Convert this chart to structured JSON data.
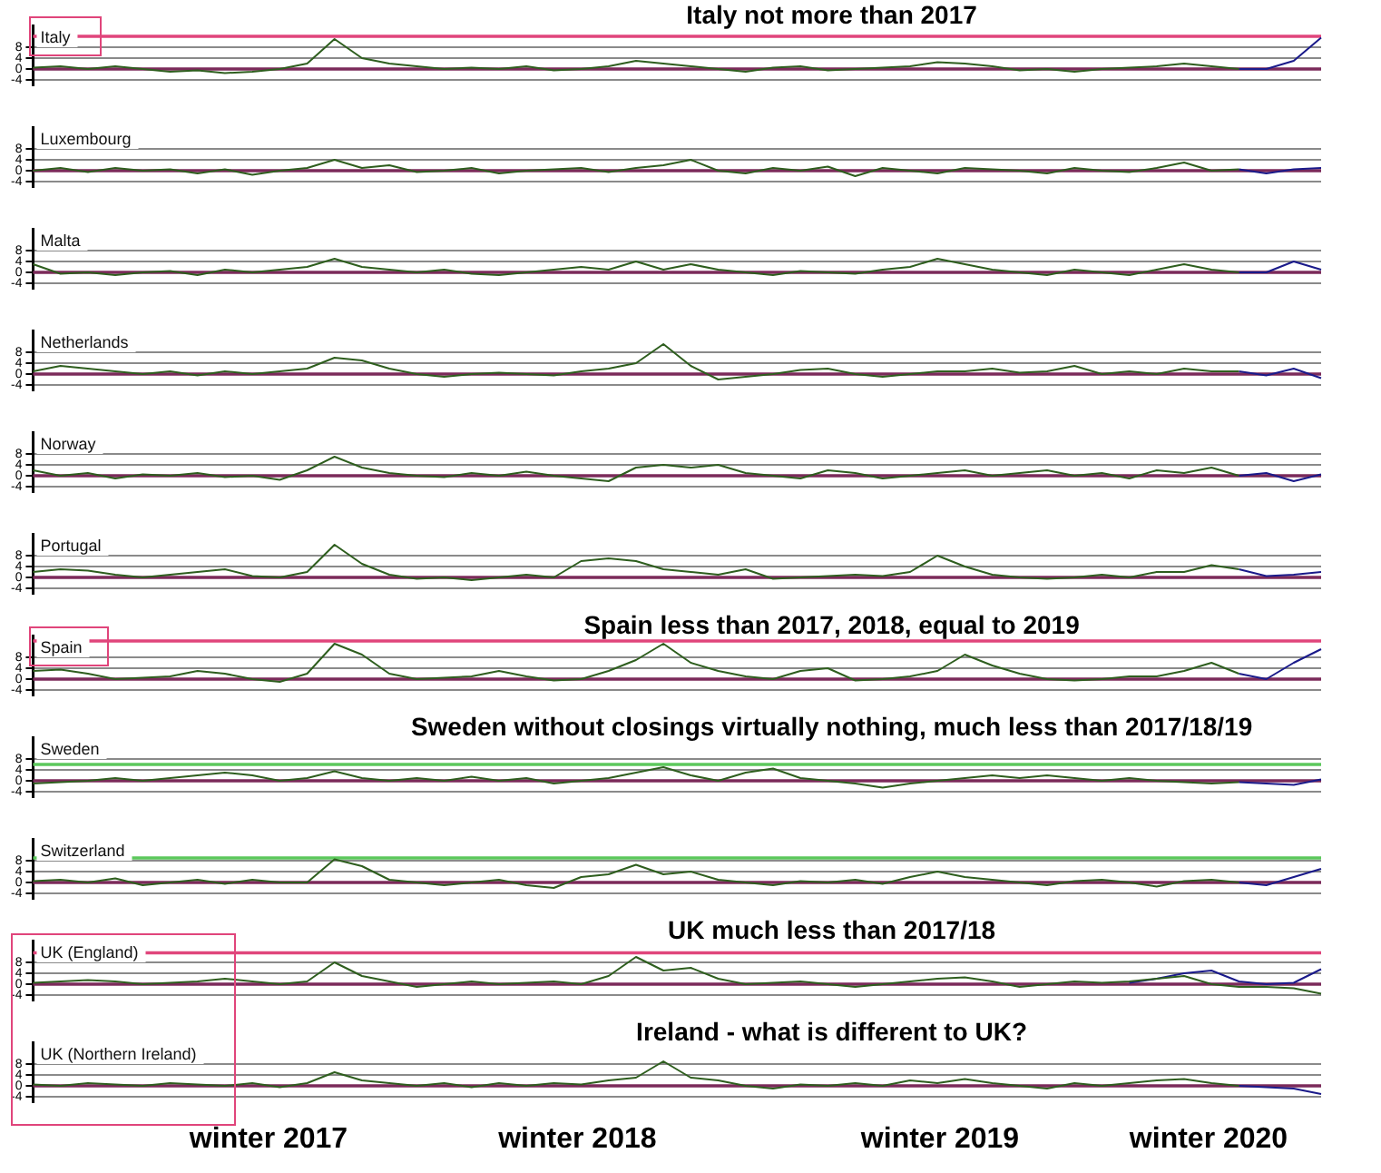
{
  "chart_data": [
    {
      "type": "line",
      "title": "Italy",
      "annotations": [
        "Italy not more than 2017"
      ],
      "categories": [
        null,
        null,
        null,
        null,
        null,
        null,
        null,
        null,
        null,
        null,
        null,
        null,
        null,
        null,
        null,
        null,
        null,
        null,
        null,
        null,
        null,
        null,
        null,
        null,
        null,
        null,
        null,
        null,
        null,
        null,
        null,
        null,
        null,
        null,
        null,
        null,
        null,
        null,
        null,
        null,
        null,
        null,
        null,
        null,
        null,
        null,
        null,
        null
      ],
      "series": [
        {
          "color": "#2e5e1e",
          "values": [
            0.5,
            1,
            0,
            1,
            0,
            -1,
            -0.5,
            -1.5,
            -1,
            0,
            2,
            11,
            4,
            2,
            1,
            0,
            0.5,
            0,
            1,
            -0.5,
            0,
            1,
            3,
            2,
            1,
            0,
            -1,
            0.5,
            1,
            -0.5,
            0,
            0.5,
            1,
            2.5,
            2,
            1,
            -0.5,
            0,
            -1,
            0,
            0.5,
            1,
            2,
            1,
            0,
            null,
            null,
            null
          ]
        },
        {
          "color": "#1a1a8a",
          "values": [
            null,
            null,
            null,
            null,
            null,
            null,
            null,
            null,
            null,
            null,
            null,
            null,
            null,
            null,
            null,
            null,
            null,
            null,
            null,
            null,
            null,
            null,
            null,
            null,
            null,
            null,
            null,
            null,
            null,
            null,
            null,
            null,
            null,
            null,
            null,
            null,
            null,
            null,
            null,
            null,
            null,
            null,
            null,
            null,
            0,
            0,
            3,
            11.5
          ]
        }
      ],
      "ylim": [
        -6,
        16
      ],
      "yticks": [
        -4,
        0,
        4,
        8
      ],
      "grid": "y",
      "tick_labels": "y",
      "ref_lines": [
        {
          "axis": "y",
          "value": 0,
          "color": "#7b2a5a"
        },
        {
          "axis": "y",
          "value": 12,
          "color": "#e0457b"
        }
      ]
    },
    {
      "type": "line",
      "title": "Luxembourg",
      "categories": [
        null,
        null,
        null,
        null,
        null,
        null,
        null,
        null,
        null,
        null,
        null,
        null,
        null,
        null,
        null,
        null,
        null,
        null,
        null,
        null,
        null,
        null,
        null,
        null,
        null,
        null,
        null,
        null,
        null,
        null,
        null,
        null,
        null,
        null,
        null,
        null,
        null,
        null,
        null,
        null,
        null,
        null,
        null,
        null,
        null,
        null,
        null,
        null
      ],
      "series": [
        {
          "color": "#2e5e1e",
          "values": [
            0,
            1,
            -0.5,
            1,
            0,
            0.5,
            -1,
            0.5,
            -1.5,
            0,
            1,
            4,
            1,
            2,
            -0.5,
            0,
            1,
            -1,
            0,
            0.5,
            1,
            -0.5,
            1,
            2,
            4,
            0,
            -1,
            1,
            0,
            1.5,
            -2,
            1,
            0,
            -1,
            1,
            0.5,
            0,
            -1,
            1,
            0,
            -0.5,
            1,
            3,
            0,
            0.5,
            null,
            null,
            null
          ]
        },
        {
          "color": "#1a1a8a",
          "values": [
            null,
            null,
            null,
            null,
            null,
            null,
            null,
            null,
            null,
            null,
            null,
            null,
            null,
            null,
            null,
            null,
            null,
            null,
            null,
            null,
            null,
            null,
            null,
            null,
            null,
            null,
            null,
            null,
            null,
            null,
            null,
            null,
            null,
            null,
            null,
            null,
            null,
            null,
            null,
            null,
            null,
            null,
            null,
            null,
            0.5,
            -1,
            0.5,
            1
          ]
        }
      ],
      "ylim": [
        -6,
        16
      ],
      "yticks": [
        -4,
        0,
        4,
        8
      ],
      "grid": "y",
      "tick_labels": "y",
      "ref_lines": [
        {
          "axis": "y",
          "value": 0,
          "color": "#7b2a5a"
        }
      ]
    },
    {
      "type": "line",
      "title": "Malta",
      "categories": [
        null,
        null,
        null,
        null,
        null,
        null,
        null,
        null,
        null,
        null,
        null,
        null,
        null,
        null,
        null,
        null,
        null,
        null,
        null,
        null,
        null,
        null,
        null,
        null,
        null,
        null,
        null,
        null,
        null,
        null,
        null,
        null,
        null,
        null,
        null,
        null,
        null,
        null,
        null,
        null,
        null,
        null,
        null,
        null,
        null,
        null,
        null,
        null
      ],
      "series": [
        {
          "color": "#2e5e1e",
          "values": [
            3,
            -0.5,
            0,
            -1,
            0,
            0.5,
            -1,
            1,
            0,
            1,
            2,
            5,
            2,
            1,
            0,
            1,
            -0.5,
            -1,
            0,
            1,
            2,
            1,
            4,
            1,
            3,
            1,
            0,
            -1,
            0.5,
            0,
            -0.5,
            1,
            2,
            5,
            3,
            1,
            0,
            -1,
            1,
            0,
            -1,
            1,
            3,
            1,
            0,
            null,
            null,
            null
          ]
        },
        {
          "color": "#1a1a8a",
          "values": [
            null,
            null,
            null,
            null,
            null,
            null,
            null,
            null,
            null,
            null,
            null,
            null,
            null,
            null,
            null,
            null,
            null,
            null,
            null,
            null,
            null,
            null,
            null,
            null,
            null,
            null,
            null,
            null,
            null,
            null,
            null,
            null,
            null,
            null,
            null,
            null,
            null,
            null,
            null,
            null,
            null,
            null,
            null,
            null,
            0,
            0,
            4,
            1
          ]
        }
      ],
      "ylim": [
        -6,
        16
      ],
      "yticks": [
        -4,
        0,
        4,
        8
      ],
      "grid": "y",
      "tick_labels": "y",
      "ref_lines": [
        {
          "axis": "y",
          "value": 0,
          "color": "#7b2a5a"
        }
      ]
    },
    {
      "type": "line",
      "title": "Netherlands",
      "categories": [
        null,
        null,
        null,
        null,
        null,
        null,
        null,
        null,
        null,
        null,
        null,
        null,
        null,
        null,
        null,
        null,
        null,
        null,
        null,
        null,
        null,
        null,
        null,
        null,
        null,
        null,
        null,
        null,
        null,
        null,
        null,
        null,
        null,
        null,
        null,
        null,
        null,
        null,
        null,
        null,
        null,
        null,
        null,
        null,
        null,
        null,
        null,
        null
      ],
      "series": [
        {
          "color": "#2e5e1e",
          "values": [
            1,
            3,
            2,
            1,
            0,
            1,
            -0.5,
            1,
            0,
            1,
            2,
            6,
            5,
            2,
            0,
            -1,
            0,
            0.5,
            0,
            -0.5,
            1,
            2,
            4,
            11,
            3,
            -2,
            -1,
            0,
            1.5,
            2,
            0,
            -1,
            0,
            1,
            1,
            2,
            0.5,
            1,
            3,
            0,
            1,
            0,
            2,
            1,
            1,
            null,
            null,
            null
          ]
        },
        {
          "color": "#1a1a8a",
          "values": [
            null,
            null,
            null,
            null,
            null,
            null,
            null,
            null,
            null,
            null,
            null,
            null,
            null,
            null,
            null,
            null,
            null,
            null,
            null,
            null,
            null,
            null,
            null,
            null,
            null,
            null,
            null,
            null,
            null,
            null,
            null,
            null,
            null,
            null,
            null,
            null,
            null,
            null,
            null,
            null,
            null,
            null,
            null,
            null,
            1,
            -0.5,
            2,
            -1.5
          ]
        }
      ],
      "ylim": [
        -6,
        16
      ],
      "yticks": [
        -4,
        0,
        4,
        8
      ],
      "grid": "y",
      "tick_labels": "y",
      "ref_lines": [
        {
          "axis": "y",
          "value": 0,
          "color": "#7b2a5a"
        }
      ]
    },
    {
      "type": "line",
      "title": "Norway",
      "categories": [
        null,
        null,
        null,
        null,
        null,
        null,
        null,
        null,
        null,
        null,
        null,
        null,
        null,
        null,
        null,
        null,
        null,
        null,
        null,
        null,
        null,
        null,
        null,
        null,
        null,
        null,
        null,
        null,
        null,
        null,
        null,
        null,
        null,
        null,
        null,
        null,
        null,
        null,
        null,
        null,
        null,
        null,
        null,
        null,
        null,
        null,
        null,
        null
      ],
      "series": [
        {
          "color": "#2e5e1e",
          "values": [
            2,
            0,
            1,
            -1,
            0.5,
            0,
            1,
            -0.5,
            0,
            -1.5,
            2,
            7,
            3,
            1,
            0,
            -0.5,
            1,
            0,
            1.5,
            0,
            -1,
            -2,
            3,
            4,
            3,
            4,
            1,
            0,
            -1,
            2,
            1,
            -1,
            0,
            1,
            2,
            0,
            1,
            2,
            0,
            1,
            -1,
            2,
            1,
            3,
            0,
            null,
            null,
            null
          ]
        },
        {
          "color": "#1a1a8a",
          "values": [
            null,
            null,
            null,
            null,
            null,
            null,
            null,
            null,
            null,
            null,
            null,
            null,
            null,
            null,
            null,
            null,
            null,
            null,
            null,
            null,
            null,
            null,
            null,
            null,
            null,
            null,
            null,
            null,
            null,
            null,
            null,
            null,
            null,
            null,
            null,
            null,
            null,
            null,
            null,
            null,
            null,
            null,
            null,
            null,
            0,
            1,
            -2,
            0.5
          ]
        }
      ],
      "ylim": [
        -6,
        16
      ],
      "yticks": [
        -4,
        0,
        4,
        8
      ],
      "grid": "y",
      "tick_labels": "y",
      "ref_lines": [
        {
          "axis": "y",
          "value": 0,
          "color": "#7b2a5a"
        }
      ]
    },
    {
      "type": "line",
      "title": "Portugal",
      "categories": [
        null,
        null,
        null,
        null,
        null,
        null,
        null,
        null,
        null,
        null,
        null,
        null,
        null,
        null,
        null,
        null,
        null,
        null,
        null,
        null,
        null,
        null,
        null,
        null,
        null,
        null,
        null,
        null,
        null,
        null,
        null,
        null,
        null,
        null,
        null,
        null,
        null,
        null,
        null,
        null,
        null,
        null,
        null,
        null,
        null,
        null,
        null,
        null
      ],
      "series": [
        {
          "color": "#2e5e1e",
          "values": [
            2,
            3,
            2.5,
            1,
            0,
            1,
            2,
            3,
            0.5,
            0,
            2,
            12,
            5,
            1,
            -0.5,
            0,
            -1,
            0,
            1,
            0,
            6,
            7,
            6,
            3,
            2,
            1,
            3,
            -0.5,
            0,
            0.5,
            1,
            0.5,
            2,
            8,
            4,
            1,
            0,
            -0.5,
            0,
            1,
            0,
            2,
            2,
            4.5,
            3,
            null,
            null,
            null
          ]
        },
        {
          "color": "#1a1a8a",
          "values": [
            null,
            null,
            null,
            null,
            null,
            null,
            null,
            null,
            null,
            null,
            null,
            null,
            null,
            null,
            null,
            null,
            null,
            null,
            null,
            null,
            null,
            null,
            null,
            null,
            null,
            null,
            null,
            null,
            null,
            null,
            null,
            null,
            null,
            null,
            null,
            null,
            null,
            null,
            null,
            null,
            null,
            null,
            null,
            null,
            3,
            0.5,
            1,
            2
          ]
        }
      ],
      "ylim": [
        -6,
        16
      ],
      "yticks": [
        -4,
        0,
        4,
        8
      ],
      "grid": "y",
      "tick_labels": "y",
      "ref_lines": [
        {
          "axis": "y",
          "value": 0,
          "color": "#7b2a5a"
        }
      ]
    },
    {
      "type": "line",
      "title": "Spain",
      "annotations": [
        "Spain less than 2017, 2018, equal to 2019"
      ],
      "categories": [
        null,
        null,
        null,
        null,
        null,
        null,
        null,
        null,
        null,
        null,
        null,
        null,
        null,
        null,
        null,
        null,
        null,
        null,
        null,
        null,
        null,
        null,
        null,
        null,
        null,
        null,
        null,
        null,
        null,
        null,
        null,
        null,
        null,
        null,
        null,
        null,
        null,
        null,
        null,
        null,
        null,
        null,
        null,
        null,
        null,
        null,
        null,
        null
      ],
      "series": [
        {
          "color": "#2e5e1e",
          "values": [
            3,
            3.5,
            2,
            0,
            0.5,
            1,
            3,
            2,
            0,
            -1,
            2,
            13,
            9,
            2,
            0,
            0.5,
            1,
            3,
            1,
            -0.5,
            0,
            3,
            7,
            13,
            6,
            3,
            1,
            0,
            3,
            4,
            -0.5,
            0,
            1,
            3,
            9,
            5,
            2,
            0,
            -0.5,
            0,
            1,
            1,
            3,
            6,
            2,
            null,
            null,
            null
          ]
        },
        {
          "color": "#1a1a8a",
          "values": [
            null,
            null,
            null,
            null,
            null,
            null,
            null,
            null,
            null,
            null,
            null,
            null,
            null,
            null,
            null,
            null,
            null,
            null,
            null,
            null,
            null,
            null,
            null,
            null,
            null,
            null,
            null,
            null,
            null,
            null,
            null,
            null,
            null,
            null,
            null,
            null,
            null,
            null,
            null,
            null,
            null,
            null,
            null,
            null,
            2,
            0,
            6,
            11
          ]
        }
      ],
      "ylim": [
        -6,
        16
      ],
      "yticks": [
        -4,
        0,
        4,
        8
      ],
      "grid": "y",
      "tick_labels": "y",
      "ref_lines": [
        {
          "axis": "y",
          "value": 0,
          "color": "#7b2a5a"
        },
        {
          "axis": "y",
          "value": 14,
          "color": "#e0457b"
        }
      ]
    },
    {
      "type": "line",
      "title": "Sweden",
      "annotations": [
        "Sweden without closings virtually nothing, much less than 2017/18/19"
      ],
      "categories": [
        null,
        null,
        null,
        null,
        null,
        null,
        null,
        null,
        null,
        null,
        null,
        null,
        null,
        null,
        null,
        null,
        null,
        null,
        null,
        null,
        null,
        null,
        null,
        null,
        null,
        null,
        null,
        null,
        null,
        null,
        null,
        null,
        null,
        null,
        null,
        null,
        null,
        null,
        null,
        null,
        null,
        null,
        null,
        null,
        null,
        null,
        null,
        null
      ],
      "series": [
        {
          "color": "#2e5e1e",
          "values": [
            -1,
            -0.5,
            0,
            1,
            0,
            1,
            2,
            3,
            2,
            0,
            1,
            3.5,
            1,
            0,
            1,
            0,
            1.5,
            0,
            1,
            -1,
            0,
            1,
            3,
            5,
            2,
            0,
            3,
            4.5,
            1,
            0,
            -1,
            -2.5,
            -1,
            0,
            1,
            2,
            1,
            2,
            1,
            0,
            1,
            0,
            -0.5,
            -1,
            -0.5,
            null,
            null,
            null
          ]
        },
        {
          "color": "#1a1a8a",
          "values": [
            null,
            null,
            null,
            null,
            null,
            null,
            null,
            null,
            null,
            null,
            null,
            null,
            null,
            null,
            null,
            null,
            null,
            null,
            null,
            null,
            null,
            null,
            null,
            null,
            null,
            null,
            null,
            null,
            null,
            null,
            null,
            null,
            null,
            null,
            null,
            null,
            null,
            null,
            null,
            null,
            null,
            null,
            null,
            null,
            -0.5,
            -1,
            -1.5,
            0.5
          ]
        }
      ],
      "ylim": [
        -6,
        16
      ],
      "yticks": [
        -4,
        0,
        4,
        8
      ],
      "grid": "y",
      "tick_labels": "y",
      "ref_lines": [
        {
          "axis": "y",
          "value": 0,
          "color": "#7b2a5a"
        },
        {
          "axis": "y",
          "value": 6,
          "color": "#5cc85c"
        }
      ]
    },
    {
      "type": "line",
      "title": "Switzerland",
      "categories": [
        null,
        null,
        null,
        null,
        null,
        null,
        null,
        null,
        null,
        null,
        null,
        null,
        null,
        null,
        null,
        null,
        null,
        null,
        null,
        null,
        null,
        null,
        null,
        null,
        null,
        null,
        null,
        null,
        null,
        null,
        null,
        null,
        null,
        null,
        null,
        null,
        null,
        null,
        null,
        null,
        null,
        null,
        null,
        null,
        null,
        null,
        null,
        null
      ],
      "series": [
        {
          "color": "#2e5e1e",
          "values": [
            0.5,
            1,
            0,
            1.5,
            -1,
            0,
            1,
            -0.5,
            1,
            0,
            0,
            8.5,
            6,
            1,
            0,
            -1,
            0,
            1,
            -1,
            -2,
            2,
            3,
            6.5,
            3,
            4,
            1,
            0,
            -1,
            0.5,
            0,
            1,
            -0.5,
            2,
            4,
            2,
            1,
            0,
            -1,
            0.5,
            1,
            0,
            -1.5,
            0.5,
            1,
            0,
            null,
            null,
            null
          ]
        },
        {
          "color": "#1a1a8a",
          "values": [
            null,
            null,
            null,
            null,
            null,
            null,
            null,
            null,
            null,
            null,
            null,
            null,
            null,
            null,
            null,
            null,
            null,
            null,
            null,
            null,
            null,
            null,
            null,
            null,
            null,
            null,
            null,
            null,
            null,
            null,
            null,
            null,
            null,
            null,
            null,
            null,
            null,
            null,
            null,
            null,
            null,
            null,
            null,
            null,
            0,
            -1,
            2,
            5
          ]
        }
      ],
      "ylim": [
        -6,
        16
      ],
      "yticks": [
        -4,
        0,
        4,
        8
      ],
      "grid": "y",
      "tick_labels": "y",
      "ref_lines": [
        {
          "axis": "y",
          "value": 0,
          "color": "#7b2a5a"
        },
        {
          "axis": "y",
          "value": 9,
          "color": "#5cc85c"
        }
      ]
    },
    {
      "type": "line",
      "title": "UK (England)",
      "annotations": [
        "UK much less than 2017/18"
      ],
      "categories": [
        null,
        null,
        null,
        null,
        null,
        null,
        null,
        null,
        null,
        null,
        null,
        null,
        null,
        null,
        null,
        null,
        null,
        null,
        null,
        null,
        null,
        null,
        null,
        null,
        null,
        null,
        null,
        null,
        null,
        null,
        null,
        null,
        null,
        null,
        null,
        null,
        null,
        null,
        null,
        null,
        null,
        null,
        null,
        null,
        null,
        null,
        null,
        null
      ],
      "series": [
        {
          "color": "#2e5e1e",
          "values": [
            0.5,
            1,
            1.5,
            1,
            0,
            0.5,
            1,
            2,
            1,
            0,
            1,
            8,
            3,
            1,
            -1,
            0,
            1,
            0,
            0.5,
            1,
            0,
            3,
            10,
            5,
            6,
            2,
            0,
            0.5,
            1,
            0,
            -1,
            0,
            1,
            2,
            2.5,
            1,
            -1,
            0,
            1,
            0.5,
            1,
            2,
            3,
            0,
            -1,
            -1,
            -1.5,
            -3.5
          ]
        },
        {
          "color": "#1a1a8a",
          "values": [
            null,
            null,
            null,
            null,
            null,
            null,
            null,
            null,
            null,
            null,
            null,
            null,
            null,
            null,
            null,
            null,
            null,
            null,
            null,
            null,
            null,
            null,
            null,
            null,
            null,
            null,
            null,
            null,
            null,
            null,
            null,
            null,
            null,
            null,
            null,
            null,
            null,
            null,
            null,
            null,
            0.5,
            2,
            4,
            5,
            1,
            0,
            0.5,
            5.5
          ]
        }
      ],
      "ylim": [
        -6,
        16
      ],
      "yticks": [
        -4,
        0,
        4,
        8
      ],
      "grid": "y",
      "tick_labels": "y",
      "ref_lines": [
        {
          "axis": "y",
          "value": 0,
          "color": "#7b2a5a"
        },
        {
          "axis": "y",
          "value": 11.5,
          "color": "#e0457b"
        }
      ]
    },
    {
      "type": "line",
      "title": "UK (Northern Ireland)",
      "annotations": [
        "Ireland - what is different to UK?"
      ],
      "categories": [
        null,
        null,
        null,
        null,
        null,
        null,
        null,
        null,
        null,
        null,
        null,
        null,
        null,
        null,
        null,
        null,
        null,
        null,
        null,
        null,
        null,
        null,
        null,
        null,
        null,
        null,
        null,
        null,
        null,
        null,
        null,
        null,
        null,
        null,
        null,
        null,
        null,
        null,
        null,
        null,
        null,
        null,
        null,
        null,
        null,
        null,
        null,
        null
      ],
      "series": [
        {
          "color": "#2e5e1e",
          "values": [
            0.5,
            0,
            1,
            0.5,
            0,
            1,
            0.5,
            0,
            1,
            -0.5,
            1,
            5,
            2,
            1,
            0,
            1,
            -0.5,
            1,
            0,
            1,
            0.5,
            2,
            3,
            9,
            3,
            2,
            0,
            -1,
            0.5,
            0,
            1,
            0,
            2,
            1,
            2.5,
            1,
            0,
            -1,
            1,
            0,
            1,
            2,
            2.5,
            1,
            0,
            null,
            null,
            null
          ]
        },
        {
          "color": "#1a1a8a",
          "values": [
            null,
            null,
            null,
            null,
            null,
            null,
            null,
            null,
            null,
            null,
            null,
            null,
            null,
            null,
            null,
            null,
            null,
            null,
            null,
            null,
            null,
            null,
            null,
            null,
            null,
            null,
            null,
            null,
            null,
            null,
            null,
            null,
            null,
            null,
            null,
            null,
            null,
            null,
            null,
            null,
            null,
            null,
            null,
            null,
            0,
            -0.5,
            -1,
            -3
          ]
        }
      ],
      "ylim": [
        -6,
        16
      ],
      "yticks": [
        -4,
        0,
        4,
        8
      ],
      "grid": "y",
      "tick_labels": "y",
      "ref_lines": [
        {
          "axis": "y",
          "value": 0,
          "color": "#7b2a5a"
        }
      ]
    },
    {
      "type": "other",
      "annotations": [
        "winter 2017",
        "winter 2018",
        "winter 2019",
        "winter 2020"
      ]
    }
  ]
}
